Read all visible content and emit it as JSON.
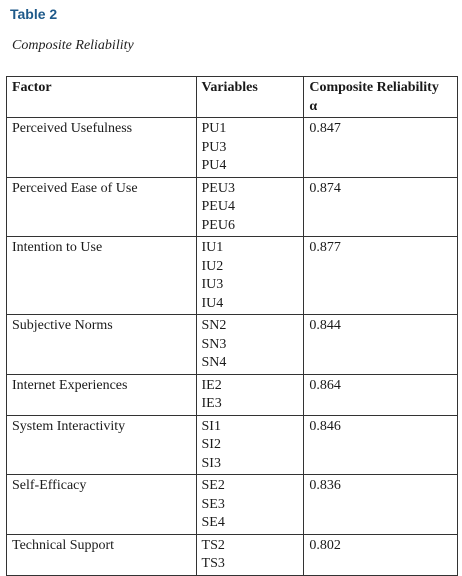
{
  "heading": {
    "label": "Table 2",
    "caption": "Composite Reliability"
  },
  "table": {
    "headers": {
      "factor": "Factor",
      "variables": "Variables",
      "composite_reliability": "Composite Reliability",
      "composite_reliability_symbol": "α"
    },
    "rows": [
      {
        "factor": "Perceived Usefulness",
        "variables": [
          "PU1",
          "PU3",
          "PU4"
        ],
        "value": "0.847"
      },
      {
        "factor": "Perceived Ease of Use",
        "variables": [
          "PEU3",
          "PEU4",
          "PEU6"
        ],
        "value": "0.874"
      },
      {
        "factor": "Intention to Use",
        "variables": [
          "IU1",
          "IU2",
          "IU3",
          "IU4"
        ],
        "value": "0.877"
      },
      {
        "factor": "Subjective Norms",
        "variables": [
          "SN2",
          "SN3",
          "SN4"
        ],
        "value": "0.844"
      },
      {
        "factor": "Internet Experiences",
        "variables": [
          "IE2",
          "IE3"
        ],
        "value": "0.864"
      },
      {
        "factor": "System Interactivity",
        "variables": [
          "SI1",
          "SI2",
          "SI3"
        ],
        "value": "0.846"
      },
      {
        "factor": "Self-Efficacy",
        "variables": [
          "SE2",
          "SE3",
          "SE4"
        ],
        "value": "0.836"
      },
      {
        "factor": "Technical Support",
        "variables": [
          "TS2",
          "TS3"
        ],
        "value": "0.802"
      }
    ]
  },
  "colors": {
    "label": "#1f5a8a",
    "text": "#1a1a1a",
    "border": "#333333"
  }
}
